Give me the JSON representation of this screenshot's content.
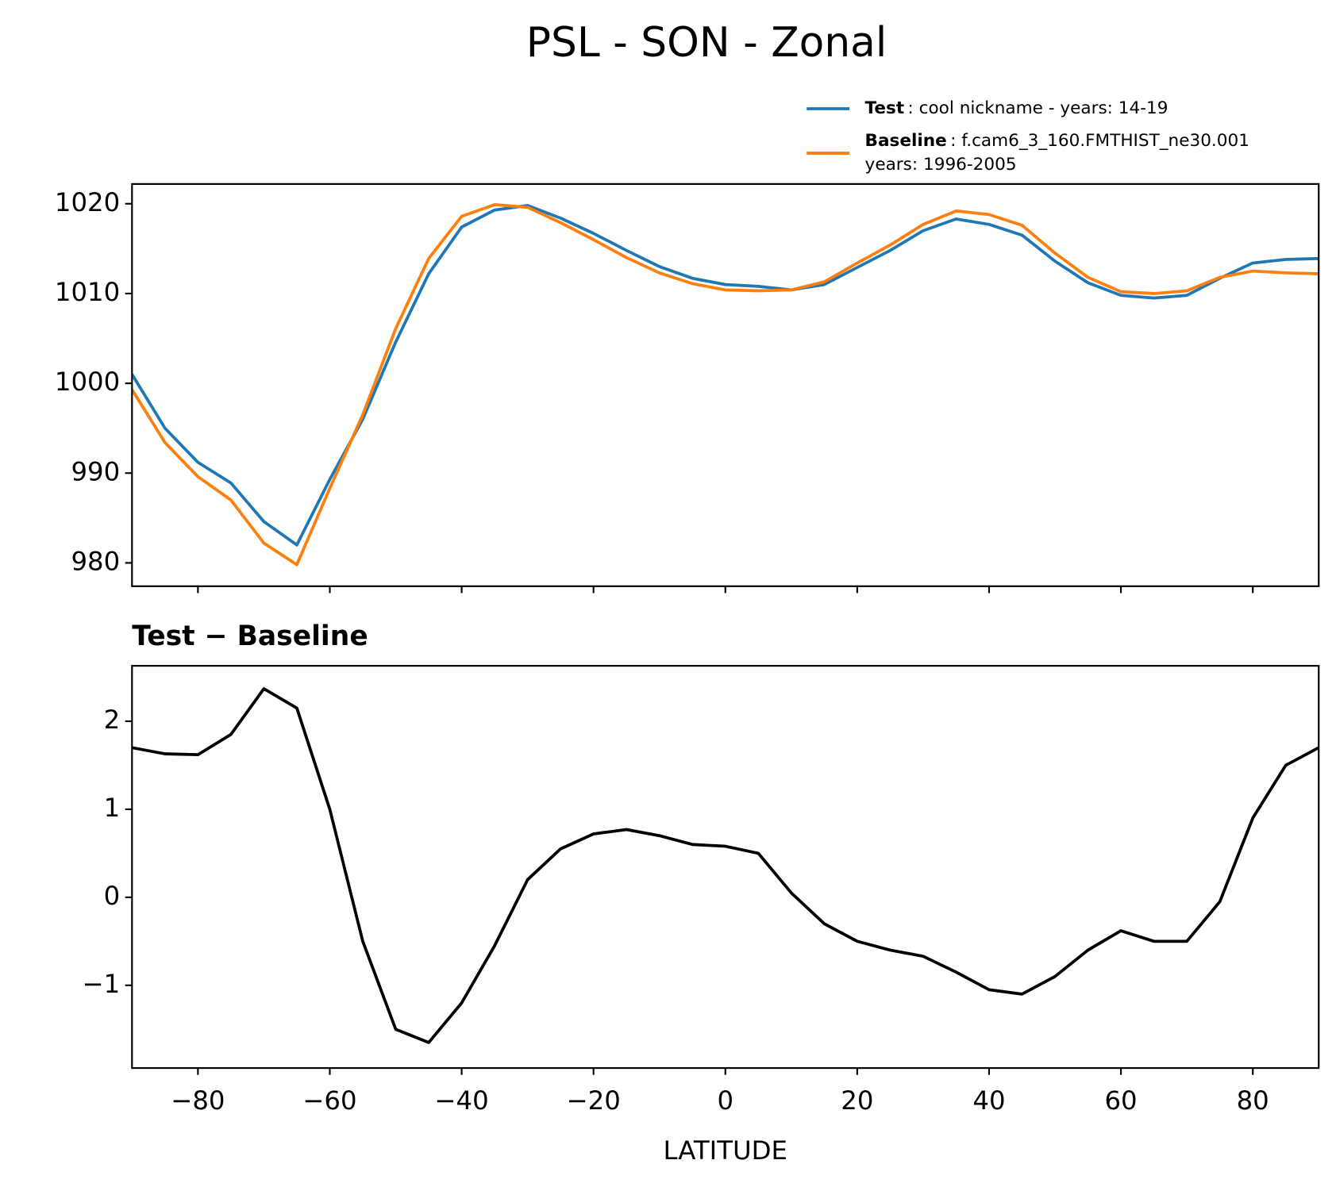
{
  "chart_data": [
    {
      "type": "line",
      "title": "PSL - SON - Zonal",
      "x": [
        -90,
        -85,
        -80,
        -75,
        -70,
        -65,
        -60,
        -55,
        -50,
        -45,
        -40,
        -35,
        -30,
        -25,
        -20,
        -15,
        -10,
        -5,
        0,
        5,
        10,
        15,
        20,
        25,
        30,
        35,
        40,
        45,
        50,
        55,
        60,
        65,
        70,
        75,
        80,
        85,
        90
      ],
      "series": [
        {
          "name": "Test",
          "description": [
            ": cool nickname - years: 14-19"
          ],
          "color": "#1f77b4",
          "values": [
            1001,
            995.0,
            991.2,
            988.9,
            984.6,
            982.0,
            989.3,
            996.0,
            1004.6,
            1012.2,
            1017.4,
            1019.3,
            1019.8,
            1018.4,
            1016.7,
            1014.8,
            1013.0,
            1011.7,
            1011.0,
            1010.8,
            1010.4,
            1011.0,
            1012.9,
            1014.8,
            1017.0,
            1018.3,
            1017.7,
            1016.5,
            1013.6,
            1011.2,
            1009.8,
            1009.5,
            1009.8,
            1011.7,
            1013.4,
            1013.8,
            1013.9
          ]
        },
        {
          "name": "Baseline",
          "description": [
            ": f.cam6_3_160.FMTHIST_ne30.001",
            "years: 1996-2005"
          ],
          "color": "#ff7f0e",
          "values": [
            999.3,
            993.4,
            989.6,
            987.0,
            982.2,
            979.8,
            988.3,
            996.5,
            1006.1,
            1013.9,
            1018.6,
            1019.9,
            1019.6,
            1017.9,
            1016.0,
            1014.0,
            1012.3,
            1011.1,
            1010.4,
            1010.3,
            1010.4,
            1011.3,
            1013.4,
            1015.4,
            1017.7,
            1019.2,
            1018.8,
            1017.6,
            1014.5,
            1011.8,
            1010.2,
            1010.0,
            1010.3,
            1011.8,
            1012.5,
            1012.3,
            1012.2
          ]
        }
      ],
      "xlim": [
        -90,
        90
      ],
      "ylim": [
        977.4,
        1022.2
      ],
      "yticks": [
        980,
        990,
        1000,
        1010,
        1020
      ]
    },
    {
      "type": "line",
      "title": "Test − Baseline",
      "xlabel": "LATITUDE",
      "x": [
        -90,
        -85,
        -80,
        -75,
        -70,
        -65,
        -60,
        -55,
        -50,
        -45,
        -40,
        -35,
        -30,
        -25,
        -20,
        -15,
        -10,
        -5,
        0,
        5,
        10,
        15,
        20,
        25,
        30,
        35,
        40,
        45,
        50,
        55,
        60,
        65,
        70,
        75,
        80,
        85,
        90
      ],
      "series": [
        {
          "color": "#000000",
          "values": [
            1.7,
            1.63,
            1.62,
            1.85,
            2.37,
            2.15,
            1.0,
            -0.5,
            -1.5,
            -1.65,
            -1.2,
            -0.55,
            0.2,
            0.55,
            0.72,
            0.77,
            0.7,
            0.6,
            0.58,
            0.5,
            0.05,
            -0.3,
            -0.5,
            -0.6,
            -0.67,
            -0.85,
            -1.05,
            -1.1,
            -0.9,
            -0.6,
            -0.38,
            -0.5,
            -0.5,
            -0.05,
            0.9,
            1.5,
            1.7
          ]
        }
      ],
      "xlim": [
        -90,
        90
      ],
      "ylim": [
        -1.94,
        2.63
      ],
      "xticks": [
        {
          "value": -80,
          "label": "−80"
        },
        {
          "value": -60,
          "label": "−60"
        },
        {
          "value": -40,
          "label": "−40"
        },
        {
          "value": -20,
          "label": "−20"
        },
        0,
        20,
        40,
        60,
        80
      ],
      "yticks": [
        {
          "value": -1,
          "label": "−1"
        },
        0,
        1,
        2
      ]
    }
  ]
}
